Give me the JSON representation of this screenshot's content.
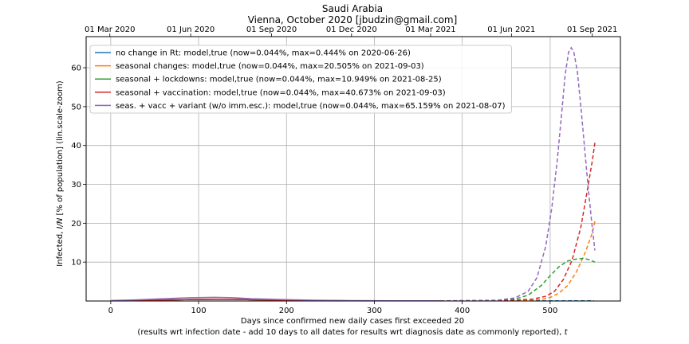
{
  "chart_data": {
    "type": "line",
    "title": "Saudi Arabia",
    "subtitle": "Vienna, October 2020 [jbudzin@gmail.com]",
    "xlabel": "Days since confirmed new daily cases first exceeded 20",
    "xlabel2_prefix": "(results wrt infection date - add 10 days to all dates for results wrt diagnosis date as commonly reported), ",
    "xlabel2_var": "t",
    "ylabel_prefix": "Infected, ",
    "ylabel_var": "I/N",
    "ylabel_suffix": " [% of population] (lin.scale-zoom)",
    "xlim": [
      -28,
      580
    ],
    "ylim": [
      0,
      68
    ],
    "grid": true,
    "legend_position": "top-left",
    "x_ticks": [
      0,
      100,
      200,
      300,
      400,
      500
    ],
    "y_ticks": [
      10,
      20,
      30,
      40,
      50,
      60
    ],
    "top_ticks": [
      {
        "x": -1,
        "label": "01 Mar 2020"
      },
      {
        "x": 91,
        "label": "01 Jun 2020"
      },
      {
        "x": 183,
        "label": "01 Sep 2020"
      },
      {
        "x": 274,
        "label": "01 Dec 2020"
      },
      {
        "x": 364,
        "label": "01 Mar 2021"
      },
      {
        "x": 456,
        "label": "01 Jun 2021"
      },
      {
        "x": 548,
        "label": "01 Sep 2021"
      }
    ],
    "vline_x": 500,
    "series": [
      {
        "name": "no change in Rt: model,true (now=0.044%, max=0.444% on 2020-06-26)",
        "color": "#1f77b4",
        "solid": [
          [
            0,
            0.05
          ],
          [
            30,
            0.12
          ],
          [
            60,
            0.25
          ],
          [
            90,
            0.38
          ],
          [
            118,
            0.444
          ],
          [
            140,
            0.42
          ],
          [
            160,
            0.33
          ],
          [
            190,
            0.22
          ],
          [
            230,
            0.12
          ],
          [
            270,
            0.07
          ],
          [
            320,
            0.05
          ],
          [
            360,
            0.045
          ],
          [
            375,
            0.044
          ]
        ],
        "dashed": [
          [
            375,
            0.044
          ],
          [
            450,
            0.044
          ],
          [
            500,
            0.044
          ],
          [
            550,
            0.044
          ]
        ]
      },
      {
        "name": "seasonal changes: model,true (now=0.044%, max=20.505% on 2021-09-03)",
        "color": "#ff7f0e",
        "solid": [
          [
            0,
            0.05
          ],
          [
            30,
            0.12
          ],
          [
            60,
            0.25
          ],
          [
            90,
            0.38
          ],
          [
            118,
            0.44
          ],
          [
            140,
            0.42
          ],
          [
            160,
            0.33
          ],
          [
            190,
            0.22
          ],
          [
            230,
            0.12
          ],
          [
            270,
            0.07
          ],
          [
            320,
            0.05
          ],
          [
            360,
            0.045
          ],
          [
            375,
            0.044
          ]
        ],
        "dashed": [
          [
            375,
            0.044
          ],
          [
            440,
            0.06
          ],
          [
            470,
            0.15
          ],
          [
            490,
            0.4
          ],
          [
            500,
            0.9
          ],
          [
            510,
            2.0
          ],
          [
            520,
            4.0
          ],
          [
            530,
            7.5
          ],
          [
            540,
            12.5
          ],
          [
            548,
            17.5
          ],
          [
            551,
            20.5
          ]
        ]
      },
      {
        "name": "seasonal + lockdowns: model,true (now=0.044%, max=10.949% on 2021-08-25)",
        "color": "#2ca02c",
        "solid": [
          [
            0,
            0.05
          ],
          [
            30,
            0.12
          ],
          [
            60,
            0.25
          ],
          [
            90,
            0.38
          ],
          [
            118,
            0.44
          ],
          [
            140,
            0.42
          ],
          [
            160,
            0.33
          ],
          [
            190,
            0.22
          ],
          [
            230,
            0.12
          ],
          [
            270,
            0.07
          ],
          [
            320,
            0.05
          ],
          [
            360,
            0.045
          ],
          [
            375,
            0.044
          ]
        ],
        "dashed": [
          [
            375,
            0.044
          ],
          [
            440,
            0.1
          ],
          [
            460,
            0.5
          ],
          [
            475,
            1.5
          ],
          [
            490,
            4.0
          ],
          [
            500,
            6.5
          ],
          [
            510,
            8.8
          ],
          [
            520,
            10.3
          ],
          [
            530,
            10.8
          ],
          [
            538,
            10.95
          ],
          [
            545,
            10.6
          ],
          [
            551,
            10.0
          ]
        ]
      },
      {
        "name": "seasonal + vaccination: model,true (now=0.044%, max=40.673% on 2021-09-03)",
        "color": "#d62728",
        "solid": [
          [
            0,
            0.05
          ],
          [
            30,
            0.12
          ],
          [
            60,
            0.25
          ],
          [
            90,
            0.38
          ],
          [
            118,
            0.44
          ],
          [
            140,
            0.42
          ],
          [
            160,
            0.33
          ],
          [
            190,
            0.22
          ],
          [
            230,
            0.12
          ],
          [
            270,
            0.07
          ],
          [
            320,
            0.05
          ],
          [
            360,
            0.045
          ],
          [
            375,
            0.044
          ]
        ],
        "dashed": [
          [
            375,
            0.044
          ],
          [
            450,
            0.1
          ],
          [
            480,
            0.5
          ],
          [
            495,
            1.2
          ],
          [
            505,
            2.5
          ],
          [
            515,
            5.5
          ],
          [
            525,
            10.5
          ],
          [
            535,
            19.0
          ],
          [
            542,
            28.0
          ],
          [
            548,
            36.0
          ],
          [
            551,
            40.7
          ]
        ]
      },
      {
        "name": "seas. + vacc + variant (w/o imm.esc.): model,true (now=0.044%, max=65.159% on 2021-08-07)",
        "color": "#9467bd",
        "solid": [
          [
            0,
            0.1
          ],
          [
            30,
            0.3
          ],
          [
            60,
            0.6
          ],
          [
            90,
            0.85
          ],
          [
            118,
            0.95
          ],
          [
            140,
            0.85
          ],
          [
            160,
            0.6
          ],
          [
            190,
            0.4
          ],
          [
            230,
            0.2
          ],
          [
            270,
            0.1
          ],
          [
            320,
            0.06
          ],
          [
            360,
            0.05
          ],
          [
            375,
            0.044
          ]
        ],
        "dashed": [
          [
            375,
            0.044
          ],
          [
            440,
            0.2
          ],
          [
            460,
            0.8
          ],
          [
            475,
            2.5
          ],
          [
            485,
            6.0
          ],
          [
            495,
            14.0
          ],
          [
            502,
            24.0
          ],
          [
            508,
            36.0
          ],
          [
            513,
            48.0
          ],
          [
            517,
            58.0
          ],
          [
            521,
            64.0
          ],
          [
            524,
            65.16
          ],
          [
            527,
            64.0
          ],
          [
            531,
            59.0
          ],
          [
            535,
            50.0
          ],
          [
            539,
            40.0
          ],
          [
            543,
            30.0
          ],
          [
            547,
            21.0
          ],
          [
            551,
            13.0
          ]
        ]
      }
    ]
  }
}
